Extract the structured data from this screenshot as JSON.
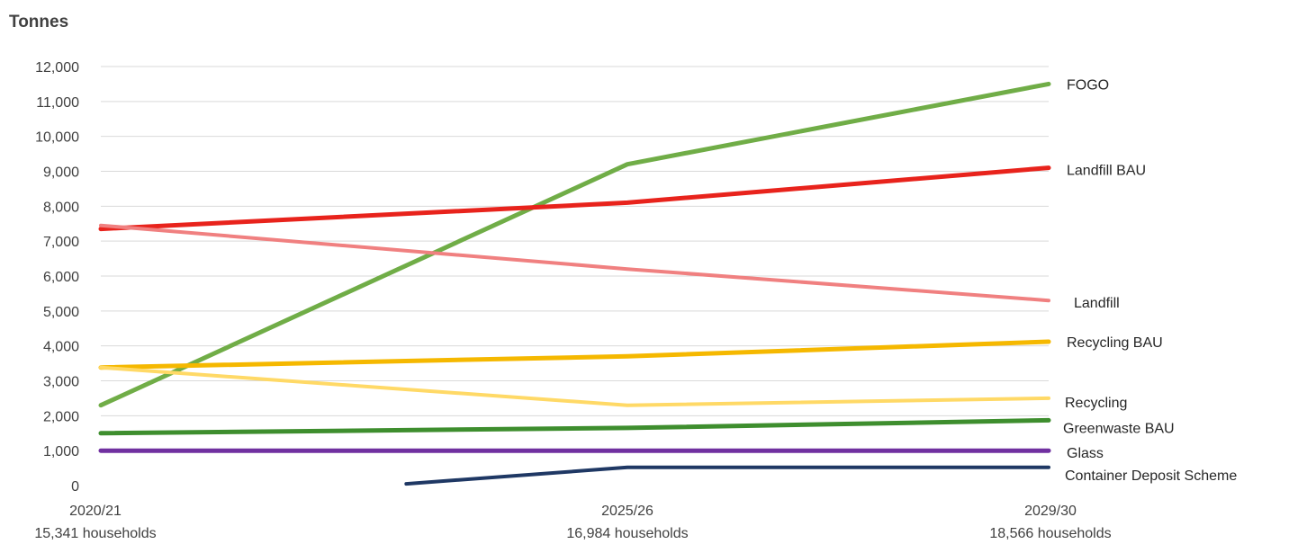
{
  "chart_data": {
    "type": "line",
    "title": "",
    "ylabel": "Tonnes",
    "xlabel": "",
    "ylim": [
      0,
      12000
    ],
    "yticks": [
      0,
      1000,
      2000,
      3000,
      4000,
      5000,
      6000,
      7000,
      8000,
      9000,
      10000,
      11000,
      12000
    ],
    "ytick_labels": [
      "0",
      "1,000",
      "2,000",
      "3,000",
      "4,000",
      "5,000",
      "6,000",
      "7,000",
      "8,000",
      "9,000",
      "10,000",
      "11,000",
      "12,000"
    ],
    "x_range": [
      2020.5,
      2029.5
    ],
    "grid": true,
    "legend": "right, labels at line ends",
    "x_ticks": [
      {
        "year": 2020.5,
        "label": "2020/21",
        "sublabel": "15,341 households"
      },
      {
        "year": 2025.5,
        "label": "2025/26",
        "sublabel": "16,984 households"
      },
      {
        "year": 2029.5,
        "label": "2029/30",
        "sublabel": "18,566 households"
      }
    ],
    "series": [
      {
        "name": "FOGO",
        "color": "#70ad47",
        "width": 5,
        "points": [
          [
            2020.5,
            2300
          ],
          [
            2025.5,
            9200
          ],
          [
            2029.5,
            11500
          ]
        ]
      },
      {
        "name": "Landfill BAU",
        "color": "#e8231c",
        "width": 5,
        "points": [
          [
            2020.5,
            7350
          ],
          [
            2025.5,
            8100
          ],
          [
            2029.5,
            9100
          ]
        ]
      },
      {
        "name": "Landfill",
        "color": "#f08080",
        "width": 4,
        "points": [
          [
            2020.5,
            7450
          ],
          [
            2025.5,
            6200
          ],
          [
            2029.5,
            5300
          ]
        ]
      },
      {
        "name": "Recycling BAU",
        "color": "#f5b800",
        "width": 5,
        "points": [
          [
            2020.5,
            3380
          ],
          [
            2025.5,
            3700
          ],
          [
            2029.5,
            4120
          ]
        ]
      },
      {
        "name": "Recycling",
        "color": "#ffd966",
        "width": 4,
        "points": [
          [
            2020.5,
            3380
          ],
          [
            2025.5,
            2300
          ],
          [
            2029.5,
            2500
          ]
        ]
      },
      {
        "name": "Greenwaste BAU",
        "color": "#3e8e2e",
        "width": 5,
        "points": [
          [
            2020.5,
            1500
          ],
          [
            2025.5,
            1650
          ],
          [
            2029.5,
            1870
          ]
        ]
      },
      {
        "name": "Glass",
        "color": "#7030a0",
        "width": 5,
        "points": [
          [
            2020.5,
            1000
          ],
          [
            2025.5,
            1000
          ],
          [
            2029.5,
            1000
          ]
        ]
      },
      {
        "name": "Container Deposit Scheme",
        "color": "#1f3864",
        "width": 4,
        "points": [
          [
            2023.4,
            50
          ],
          [
            2025.5,
            520
          ],
          [
            2029.5,
            520
          ]
        ]
      }
    ]
  }
}
